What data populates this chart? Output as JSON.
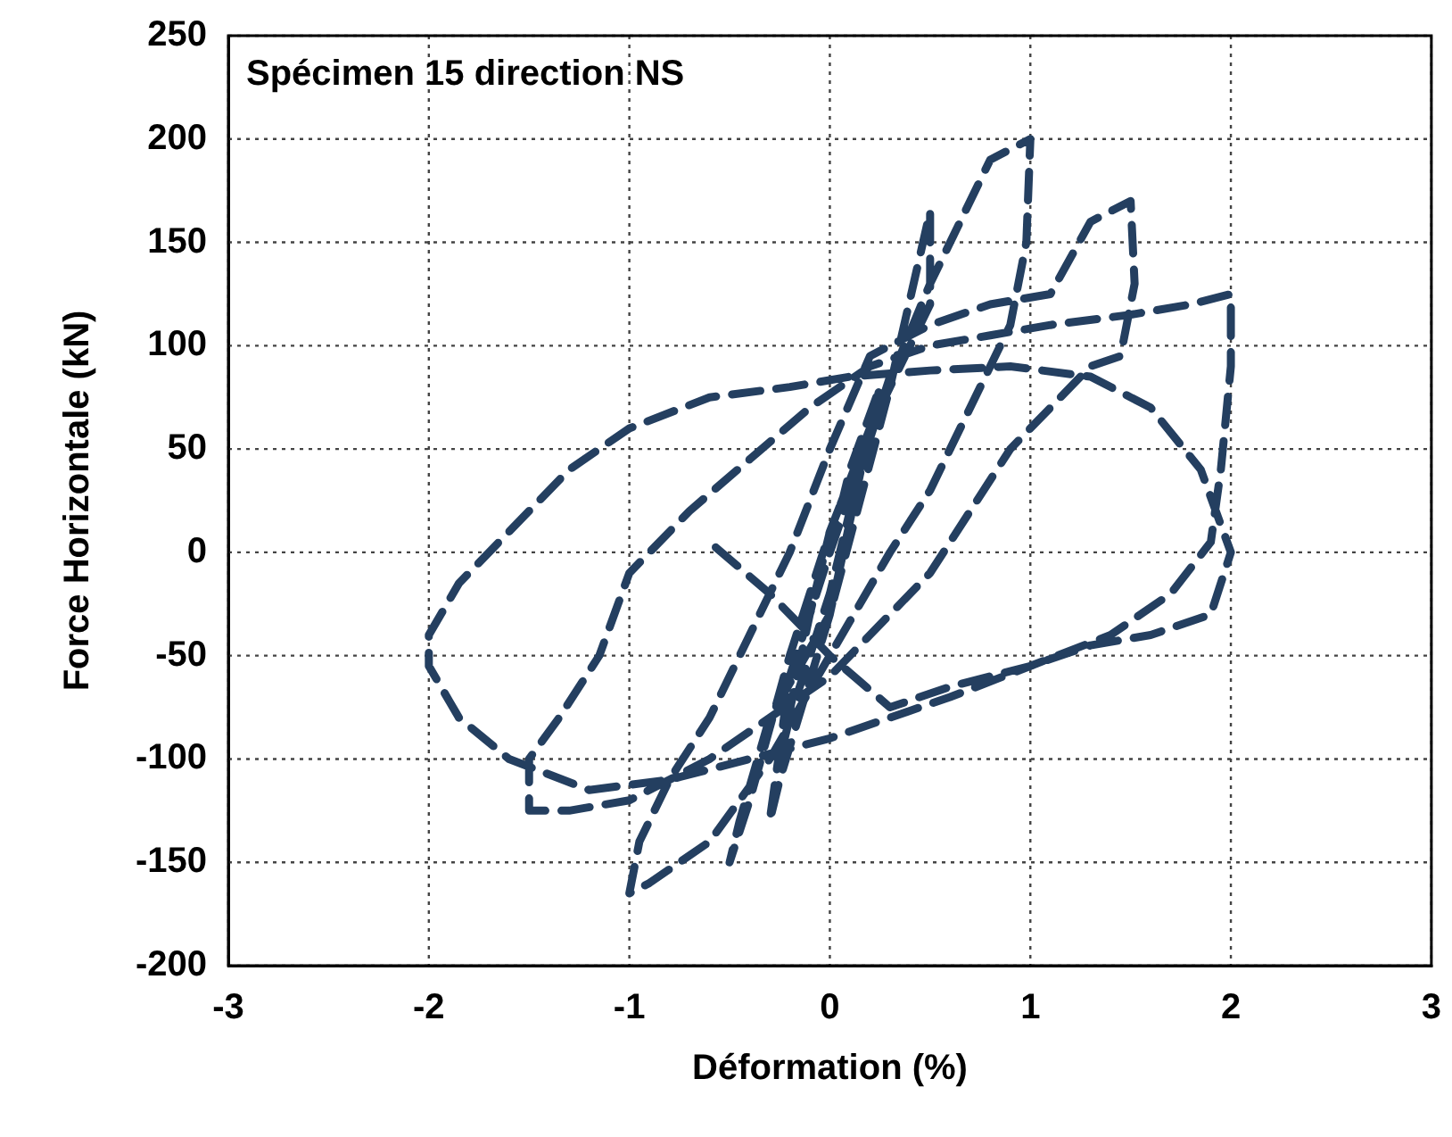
{
  "chart_data": {
    "type": "line",
    "title": "Spécimen 15 direction NS",
    "xlabel": "Déformation (%)",
    "ylabel": "Force Horizontale (kN)",
    "xlim": [
      -3,
      3
    ],
    "xticks": [
      -3,
      -2,
      -1,
      0,
      1,
      2,
      3
    ],
    "ylim": [
      -200,
      250
    ],
    "yticks": [
      -200,
      -150,
      -100,
      -50,
      0,
      50,
      100,
      150,
      200,
      250
    ],
    "grid": true,
    "legend": false,
    "marker": "none",
    "line_style": "dashed",
    "series": [
      {
        "color": "#243f60",
        "x": [
          0,
          0.1,
          0.25,
          0.2,
          0,
          -0.1,
          -0.25,
          -0.2,
          0,
          0.15,
          0.3,
          0.25,
          0,
          -0.2,
          -0.3,
          -0.25,
          0,
          0.3,
          0.5,
          0.5,
          0.4,
          0.2,
          0,
          -0.2,
          -0.4,
          -0.5,
          -0.45,
          -0.3,
          0,
          0.2,
          0.5,
          0.8,
          1.0,
          0.98,
          0.9,
          0.7,
          0.5,
          0.3,
          0,
          -0.3,
          -0.6,
          -0.9,
          -1.0,
          -0.95,
          -0.8,
          -0.6,
          -0.4,
          -0.2,
          0,
          0.2,
          0.5,
          0.8,
          1.1,
          1.3,
          1.5,
          1.52,
          1.45,
          1.3,
          1.1,
          0.9,
          0.7,
          0.5,
          0.3,
          0,
          -0.3,
          -0.6,
          -1.0,
          -1.3,
          -1.5,
          -1.5,
          -1.35,
          -1.15,
          -1.0,
          -0.7,
          -0.4,
          -0.1,
          0.2,
          0.5,
          0.8,
          1.1,
          1.5,
          1.8,
          2.0,
          2.0,
          1.95,
          1.9,
          1.7,
          1.4,
          1.0,
          0.6,
          0.3,
          0,
          -0.4,
          -0.8,
          -1.2,
          -1.6,
          -1.85,
          -2.0,
          -2.0,
          -1.85,
          -1.6,
          -1.3,
          -1.0,
          -0.6,
          -0.2,
          0.1,
          0.5,
          0.9,
          1.3,
          1.6,
          1.85,
          2.0,
          1.9,
          1.6,
          1.3,
          1.0,
          0.6,
          0.3,
          0,
          -0.3,
          -0.6
        ],
        "values": [
          0,
          40,
          80,
          60,
          10,
          -30,
          -100,
          -80,
          -20,
          40,
          85,
          70,
          0,
          -60,
          -130,
          -110,
          -30,
          80,
          165,
          120,
          100,
          60,
          10,
          -50,
          -120,
          -150,
          -130,
          -80,
          -30,
          60,
          130,
          190,
          200,
          150,
          110,
          70,
          30,
          0,
          -50,
          -100,
          -140,
          -160,
          -165,
          -140,
          -110,
          -80,
          -40,
          0,
          50,
          95,
          110,
          120,
          125,
          160,
          170,
          130,
          95,
          90,
          70,
          50,
          20,
          -10,
          -30,
          -60,
          -80,
          -100,
          -120,
          -125,
          -125,
          -100,
          -80,
          -50,
          -10,
          20,
          45,
          70,
          90,
          100,
          105,
          110,
          115,
          120,
          125,
          90,
          40,
          5,
          -20,
          -40,
          -55,
          -70,
          -80,
          -90,
          -100,
          -110,
          -115,
          -100,
          -80,
          -55,
          -40,
          -15,
          10,
          40,
          60,
          75,
          80,
          85,
          88,
          90,
          85,
          70,
          40,
          0,
          -30,
          -40,
          -45,
          -55,
          -65,
          -75,
          -50,
          -20,
          5
        ]
      }
    ]
  }
}
